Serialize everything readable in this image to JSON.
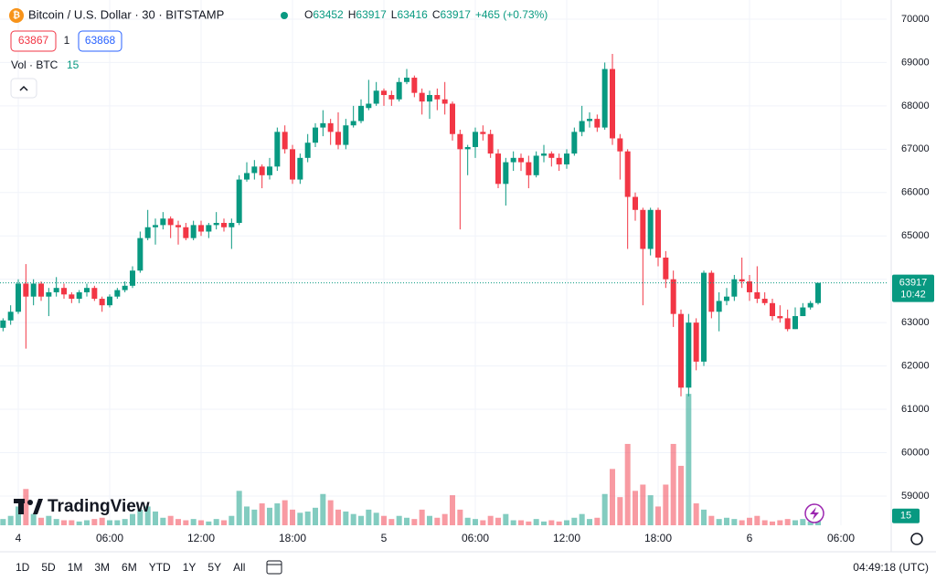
{
  "header": {
    "symbol": "Bitcoin / U.S. Dollar · 30 · BITSTAMP",
    "ohlc": [
      {
        "key": "O",
        "value": "63452"
      },
      {
        "key": "H",
        "value": "63917"
      },
      {
        "key": "L",
        "value": "63416"
      },
      {
        "key": "C",
        "value": "63917"
      }
    ],
    "change": "+465 (+0.73%)",
    "bid": "63867",
    "spread": "1",
    "ask": "63868",
    "volume_label": "Vol · BTC"
  },
  "brand": "TradingView",
  "toolbar": {
    "ranges": [
      "1D",
      "5D",
      "1M",
      "3M",
      "6M",
      "YTD",
      "1Y",
      "5Y",
      "All"
    ],
    "clock": "04:49:18 (UTC)"
  },
  "chart_data": {
    "type": "candlestick",
    "up_color": "#089981",
    "down_color": "#f23645",
    "volume_up_color": "rgba(8,153,129,0.5)",
    "volume_down_color": "rgba(242,54,69,0.5)",
    "grid": true,
    "last_price": 63917,
    "countdown": "10:42",
    "xlim": [
      -1.2,
      57
    ],
    "ylim": [
      58325,
      70442
    ],
    "volume_ylim": [
      0,
      400
    ],
    "xticks": [
      {
        "value": 0,
        "label": "4"
      },
      {
        "value": 6,
        "label": "06:00"
      },
      {
        "value": 12,
        "label": "12:00"
      },
      {
        "value": 18,
        "label": "18:00"
      },
      {
        "value": 24,
        "label": "5"
      },
      {
        "value": 30,
        "label": "06:00"
      },
      {
        "value": 36,
        "label": "12:00"
      },
      {
        "value": 42,
        "label": "18:00"
      },
      {
        "value": 48,
        "label": "6"
      },
      {
        "value": 54,
        "label": "06:00"
      }
    ],
    "yticks": [
      59000,
      60000,
      61000,
      62000,
      63000,
      64000,
      65000,
      66000,
      67000,
      68000,
      69000,
      70000
    ],
    "x": [
      -1,
      -0.5,
      0,
      0.5,
      1,
      1.5,
      2,
      2.5,
      3,
      3.5,
      4,
      4.5,
      5,
      5.5,
      6,
      6.5,
      7,
      7.5,
      8,
      8.5,
      9,
      9.5,
      10,
      10.5,
      11,
      11.5,
      12,
      12.5,
      13,
      13.5,
      14,
      14.5,
      15,
      15.5,
      16,
      16.5,
      17,
      17.5,
      18,
      18.5,
      19,
      19.5,
      20,
      20.5,
      21,
      21.5,
      22,
      22.5,
      23,
      23.5,
      24,
      24.5,
      25,
      25.5,
      26,
      26.5,
      27,
      27.5,
      28,
      28.5,
      29,
      29.5,
      30,
      30.5,
      31,
      31.5,
      32,
      32.5,
      33,
      33.5,
      34,
      34.5,
      35,
      35.5,
      36,
      36.5,
      37,
      37.5,
      38,
      38.5,
      39,
      39.5,
      40,
      40.5,
      41,
      41.5,
      42,
      42.5,
      43,
      43.5,
      44,
      44.5,
      45,
      45.5,
      46,
      46.5,
      47,
      47.5,
      48,
      48.5,
      49,
      49.5,
      50,
      50.5,
      51,
      51.5,
      52,
      52.5
    ],
    "open": [
      62880,
      63050,
      63250,
      63900,
      63600,
      63900,
      63600,
      63700,
      63800,
      63650,
      63550,
      63700,
      63800,
      63550,
      63400,
      63600,
      63750,
      63850,
      64200,
      64950,
      65200,
      65250,
      65400,
      65250,
      65200,
      64950,
      65250,
      65100,
      65250,
      65300,
      65200,
      65300,
      66300,
      66450,
      66600,
      66400,
      66600,
      67400,
      67000,
      66300,
      66800,
      67150,
      67500,
      67600,
      67400,
      67100,
      67550,
      67650,
      67950,
      68050,
      68350,
      68250,
      68150,
      68550,
      68650,
      68300,
      68100,
      68250,
      68150,
      68050,
      67350,
      67000,
      67050,
      67400,
      67350,
      66900,
      66200,
      66700,
      66800,
      66700,
      66400,
      66850,
      66900,
      66800,
      66650,
      66900,
      67400,
      67650,
      67700,
      67500,
      68850,
      67250,
      66950,
      65900,
      65600,
      64700,
      65600,
      64500,
      64000,
      63200,
      61500,
      63000,
      62100,
      64150,
      63250,
      63500,
      63600,
      64000,
      63950,
      63700,
      63550,
      63450,
      63150,
      63100,
      62850,
      63150,
      63350,
      63452
    ],
    "high": [
      63100,
      63400,
      64000,
      64350,
      64000,
      63950,
      63800,
      64050,
      63900,
      63700,
      63750,
      63900,
      63850,
      63600,
      63650,
      63800,
      63950,
      64300,
      65100,
      65600,
      65400,
      65550,
      65450,
      65350,
      65300,
      65350,
      65350,
      65300,
      65550,
      65400,
      65400,
      66400,
      66700,
      66750,
      66650,
      66800,
      67500,
      67550,
      67100,
      66900,
      67350,
      67600,
      67900,
      67700,
      67850,
      67700,
      68000,
      68150,
      68600,
      68550,
      68400,
      68350,
      68650,
      68850,
      68700,
      68400,
      68350,
      68400,
      68550,
      68100,
      67450,
      67100,
      67500,
      67550,
      67450,
      67000,
      66800,
      66950,
      66900,
      66850,
      66950,
      67100,
      66950,
      66900,
      67000,
      67500,
      68000,
      67850,
      67800,
      69000,
      69200,
      67350,
      67000,
      66000,
      65650,
      65650,
      65650,
      64650,
      64200,
      63300,
      63200,
      63100,
      64200,
      64200,
      63700,
      63800,
      64100,
      64500,
      64100,
      64300,
      63700,
      63550,
      63400,
      63300,
      63350,
      63450,
      63500,
      63917
    ],
    "low": [
      62800,
      62950,
      63200,
      62400,
      63400,
      63500,
      63150,
      63600,
      63550,
      63450,
      63450,
      63600,
      63500,
      63250,
      63350,
      63550,
      63700,
      63800,
      64150,
      64900,
      64800,
      65150,
      64950,
      64800,
      64900,
      64900,
      65000,
      64950,
      65150,
      65100,
      64700,
      65250,
      66250,
      66300,
      66100,
      66300,
      66500,
      66900,
      66200,
      66200,
      66700,
      67050,
      67300,
      67100,
      67000,
      67000,
      67500,
      67600,
      67900,
      68000,
      68000,
      68000,
      68100,
      68500,
      68200,
      67800,
      67700,
      67900,
      67800,
      67200,
      65150,
      66400,
      66800,
      67200,
      66800,
      66100,
      65700,
      66500,
      66500,
      66100,
      66350,
      66700,
      66600,
      66500,
      66550,
      66850,
      67300,
      67500,
      67400,
      67450,
      67100,
      66300,
      64700,
      65350,
      63400,
      64550,
      64300,
      63800,
      62900,
      61300,
      61300,
      61900,
      62000,
      63100,
      62800,
      63400,
      63500,
      63800,
      63500,
      63450,
      63400,
      63050,
      63000,
      62800,
      62850,
      63150,
      63300,
      63416
    ],
    "close": [
      63050,
      63250,
      63900,
      63600,
      63900,
      63600,
      63700,
      63800,
      63650,
      63550,
      63700,
      63800,
      63550,
      63400,
      63600,
      63750,
      63850,
      64200,
      64950,
      65200,
      65250,
      65400,
      65250,
      65200,
      64950,
      65250,
      65100,
      65250,
      65300,
      65200,
      65300,
      66300,
      66450,
      66600,
      66400,
      66600,
      67400,
      67000,
      66300,
      66800,
      67150,
      67500,
      67600,
      67400,
      67100,
      67550,
      67650,
      68000,
      68050,
      68350,
      68250,
      68150,
      68550,
      68650,
      68300,
      68100,
      68250,
      68150,
      68050,
      67350,
      67000,
      67050,
      67400,
      67350,
      66900,
      66200,
      66700,
      66800,
      66700,
      66400,
      66850,
      66900,
      66800,
      66650,
      66900,
      67400,
      67650,
      67700,
      67500,
      68850,
      67250,
      66950,
      65900,
      65600,
      64700,
      65600,
      64500,
      64000,
      63200,
      61500,
      63000,
      62100,
      64150,
      63250,
      63500,
      63600,
      64000,
      63950,
      63700,
      63550,
      63450,
      63150,
      63100,
      62850,
      63150,
      63350,
      63452,
      63917
    ],
    "volume": [
      10,
      15,
      30,
      58,
      18,
      12,
      15,
      10,
      8,
      8,
      6,
      8,
      10,
      12,
      8,
      8,
      10,
      18,
      25,
      30,
      22,
      12,
      15,
      10,
      8,
      10,
      8,
      6,
      10,
      8,
      15,
      55,
      30,
      25,
      35,
      28,
      35,
      40,
      25,
      20,
      22,
      28,
      50,
      40,
      25,
      22,
      18,
      15,
      25,
      20,
      15,
      10,
      15,
      12,
      10,
      25,
      15,
      12,
      18,
      48,
      25,
      12,
      10,
      8,
      15,
      12,
      18,
      8,
      8,
      6,
      10,
      6,
      8,
      6,
      8,
      12,
      18,
      10,
      12,
      50,
      90,
      45,
      130,
      55,
      65,
      48,
      30,
      65,
      130,
      95,
      210,
      35,
      25,
      15,
      10,
      12,
      10,
      8,
      12,
      15,
      8,
      6,
      8,
      10,
      8,
      10,
      6,
      15
    ]
  }
}
